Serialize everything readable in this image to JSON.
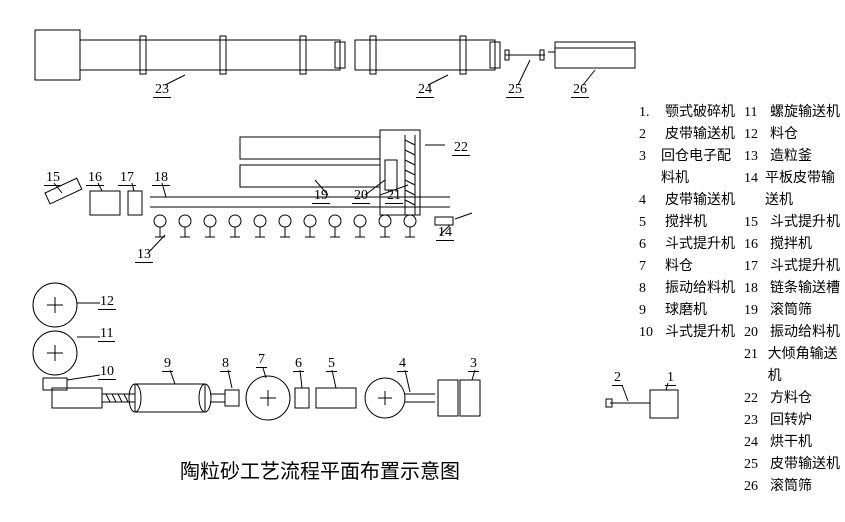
{
  "title": "陶粒砂工艺流程平面布置示意图",
  "numbers": {
    "n1": "1",
    "n2": "2",
    "n3": "3",
    "n4": "4",
    "n5": "5",
    "n6": "6",
    "n7": "7",
    "n8": "8",
    "n9": "9",
    "n10": "10",
    "n11": "11",
    "n12": "12",
    "n13": "13",
    "n14": "14",
    "n15": "15",
    "n16": "16",
    "n17": "17",
    "n18": "18",
    "n19": "19",
    "n20": "20",
    "n21": "21",
    "n22": "22",
    "n23": "23",
    "n24": "24",
    "n25": "25",
    "n26": "26"
  },
  "legend": {
    "col1": [
      {
        "n": "1.",
        "t": "颚式破碎机"
      },
      {
        "n": "2",
        "t": "皮带输送机"
      },
      {
        "n": "3",
        "t": "回仓电子配料机"
      },
      {
        "n": "4",
        "t": "皮带输送机"
      },
      {
        "n": "5",
        "t": "搅拌机"
      },
      {
        "n": "6",
        "t": "斗式提升机"
      },
      {
        "n": "7",
        "t": "料仓"
      },
      {
        "n": "8",
        "t": "振动给料机"
      },
      {
        "n": "9",
        "t": "球磨机"
      },
      {
        "n": "10",
        "t": "斗式提升机"
      }
    ],
    "col2": [
      {
        "n": "11",
        "t": "螺旋输送机"
      },
      {
        "n": "12",
        "t": "料仓"
      },
      {
        "n": "13",
        "t": "造粒釜"
      },
      {
        "n": "14",
        "t": "平板皮带输送机"
      },
      {
        "n": "15",
        "t": "斗式提升机"
      },
      {
        "n": "16",
        "t": "搅拌机"
      },
      {
        "n": "17",
        "t": "斗式提升机"
      },
      {
        "n": "18",
        "t": "链条输送槽"
      },
      {
        "n": "19",
        "t": "滚筒筛"
      },
      {
        "n": "20",
        "t": "振动给料机"
      },
      {
        "n": "21",
        "t": "大倾角输送机"
      },
      {
        "n": "22",
        "t": "方料仓"
      },
      {
        "n": "23",
        "t": "回转炉"
      },
      {
        "n": "24",
        "t": "烘干机"
      },
      {
        "n": "25",
        "t": "皮带输送机"
      },
      {
        "n": "26",
        "t": "滚筒筛"
      }
    ]
  }
}
